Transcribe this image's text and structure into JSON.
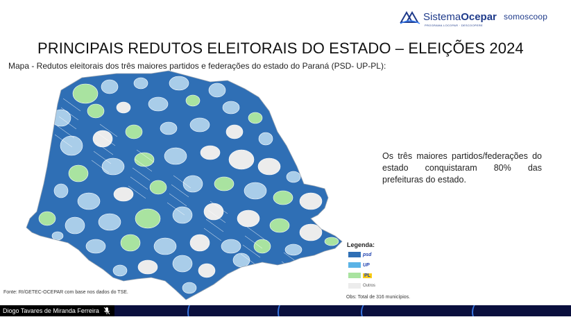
{
  "header": {
    "brand_name_regular": "Sistema",
    "brand_name_bold": "Ocepar",
    "brand_tagline": "PROGRAMA LOCOPAR · DESCOOPERE",
    "partner_logo": "somoscoop"
  },
  "slide": {
    "title": "PRINCIPAIS REDUTOS ELEITORAIS DO ESTADO – ELEIÇÕES 2024",
    "subtitle": "Mapa - Redutos eleitorais dos três maiores partidos e federações do estado do Paraná (PSD- UP-PL):",
    "side_text": "Os três maiores partidos/federações do estado conquistaram 80% das prefeituras do estado.",
    "source": "Fonte: RI/GETEC-OCEPAR com base nos dados do TSE.",
    "obs": "Obs: Total de 316 municípios."
  },
  "legend": {
    "title": "Legenda:",
    "items": [
      {
        "label": "psd",
        "color": "#2f6fb5"
      },
      {
        "label": "UP",
        "color": "#5bb3e6"
      },
      {
        "label": "PL",
        "color": "#a9e3a0"
      },
      {
        "label": "Outros",
        "color": "#ececec"
      }
    ]
  },
  "map_colors": {
    "psd": "#2f6fb5",
    "up": "#a9cde9",
    "pl": "#a9e3a0",
    "outros": "#ececec",
    "border": "#ffffff"
  },
  "meeting_bar": {
    "participant_name": "Diogo Tavares de Miranda Ferreira",
    "mic_icon": "mic-muted-icon",
    "background": "#0a0f3d"
  }
}
